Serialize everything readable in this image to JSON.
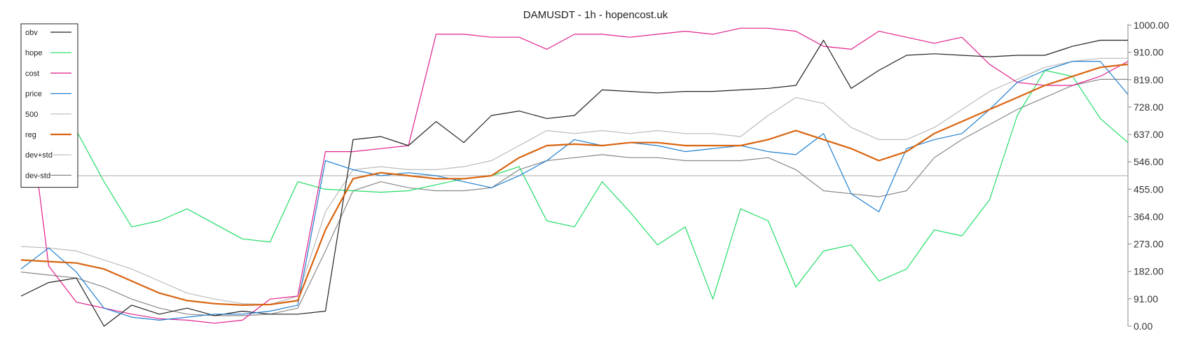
{
  "chart_data": {
    "type": "line",
    "title": "DAMUSDT - 1h - hopencost.uk",
    "xlabel": "",
    "ylabel": "",
    "ylim": [
      0,
      1000
    ],
    "yticks": [
      "0.00",
      "91.00",
      "182.00",
      "273.00",
      "364.00",
      "455.00",
      "546.00",
      "637.00",
      "728.00",
      "819.00",
      "910.00",
      "1000.00"
    ],
    "ytick_values": [
      0,
      91,
      182,
      273,
      364,
      455,
      546,
      637,
      728,
      819,
      910,
      1000
    ],
    "reference_line": 500,
    "grid": false,
    "legend_position": "top-left",
    "x": [
      0,
      10,
      20,
      30,
      40,
      50,
      60,
      70,
      80,
      90,
      100,
      110,
      120,
      130,
      140,
      150,
      160,
      170,
      180,
      190,
      200,
      210,
      220,
      230,
      240,
      250,
      260,
      270,
      280,
      290,
      300,
      310,
      320,
      330,
      340,
      350,
      360,
      370,
      380,
      390,
      400
    ],
    "series": [
      {
        "name": "obv",
        "color": "#222222",
        "width": 1.2,
        "values": [
          100,
          145,
          160,
          0,
          70,
          40,
          60,
          35,
          50,
          40,
          40,
          50,
          620,
          630,
          600,
          680,
          610,
          700,
          715,
          690,
          700,
          785,
          780,
          775,
          780,
          780,
          785,
          790,
          800,
          950,
          790,
          850,
          900,
          905,
          900,
          895,
          900,
          900,
          930,
          950,
          950
        ]
      },
      {
        "name": "hope",
        "color": "#22dd66",
        "width": 1.2,
        "values": [
          580,
          570,
          650,
          480,
          330,
          350,
          390,
          340,
          290,
          280,
          480,
          455,
          450,
          445,
          450,
          470,
          490,
          500,
          530,
          350,
          330,
          480,
          380,
          270,
          330,
          90,
          390,
          350,
          130,
          250,
          270,
          150,
          190,
          320,
          300,
          420,
          700,
          850,
          830,
          690,
          610
        ]
      },
      {
        "name": "cost",
        "color": "#e0208a",
        "width": 1.2,
        "values": [
          930,
          200,
          80,
          60,
          40,
          25,
          20,
          10,
          20,
          90,
          100,
          580,
          580,
          590,
          600,
          970,
          970,
          960,
          960,
          920,
          970,
          970,
          960,
          970,
          980,
          970,
          990,
          990,
          980,
          930,
          920,
          980,
          960,
          940,
          960,
          870,
          810,
          800,
          800,
          830,
          880
        ]
      },
      {
        "name": "price",
        "color": "#1f7fd0",
        "width": 1.2,
        "values": [
          190,
          260,
          180,
          60,
          30,
          20,
          30,
          40,
          40,
          50,
          70,
          550,
          520,
          500,
          510,
          500,
          480,
          460,
          500,
          550,
          620,
          600,
          610,
          600,
          580,
          590,
          600,
          580,
          570,
          640,
          440,
          380,
          590,
          620,
          640,
          720,
          810,
          850,
          880,
          880,
          770
        ]
      },
      {
        "name": "500",
        "color": "#bbbbbb",
        "width": 1.2,
        "values": [
          500,
          500,
          500,
          500,
          500,
          500,
          500,
          500,
          500,
          500,
          500,
          500,
          500,
          500,
          500,
          500,
          500,
          500,
          500,
          500,
          500,
          500,
          500,
          500,
          500,
          500,
          500,
          500,
          500,
          500,
          500,
          500,
          500,
          500,
          500,
          500,
          500,
          500,
          500,
          500,
          500
        ]
      },
      {
        "name": "reg",
        "color": "#d96410",
        "width": 2.2,
        "values": [
          220,
          215,
          210,
          190,
          150,
          110,
          85,
          75,
          70,
          72,
          85,
          320,
          490,
          510,
          500,
          490,
          490,
          500,
          560,
          600,
          605,
          600,
          610,
          610,
          600,
          600,
          600,
          620,
          650,
          620,
          590,
          550,
          580,
          640,
          680,
          720,
          760,
          800,
          830,
          860,
          870
        ]
      },
      {
        "name": "dev+std",
        "color": "#bbbbbb",
        "width": 1.2,
        "values": [
          265,
          260,
          250,
          220,
          190,
          150,
          110,
          90,
          75,
          72,
          100,
          380,
          520,
          530,
          520,
          520,
          530,
          550,
          600,
          650,
          640,
          650,
          640,
          650,
          640,
          640,
          630,
          700,
          760,
          740,
          660,
          620,
          620,
          660,
          720,
          780,
          820,
          860,
          880,
          890,
          890
        ]
      },
      {
        "name": "dev-std",
        "color": "#888888",
        "width": 1.2,
        "values": [
          180,
          170,
          160,
          130,
          90,
          60,
          40,
          35,
          35,
          40,
          60,
          250,
          450,
          480,
          460,
          450,
          450,
          460,
          520,
          550,
          560,
          570,
          560,
          560,
          550,
          550,
          550,
          560,
          520,
          450,
          440,
          430,
          450,
          560,
          620,
          670,
          720,
          760,
          800,
          820,
          820
        ]
      }
    ]
  }
}
